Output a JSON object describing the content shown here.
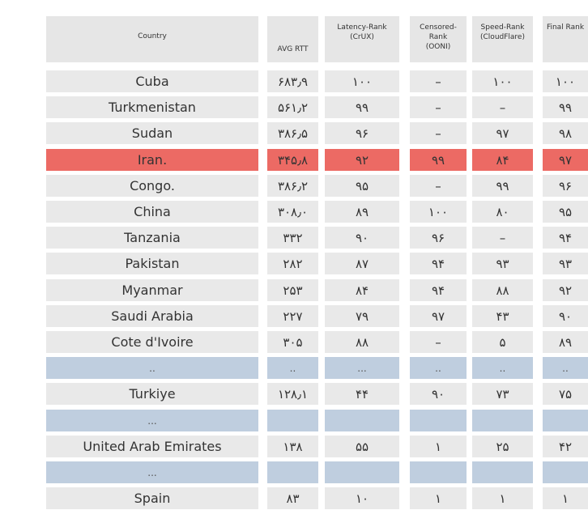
{
  "colors": {
    "header_bg": "#e6e6e6",
    "row_bg": "#e9e9e9",
    "highlight_bg": "#ec6a64",
    "separator_bg": "#bfcedf",
    "text": "#333333"
  },
  "chart_data": {
    "type": "table",
    "columns": [
      "Country",
      "AVG RTT",
      "Latency-Rank\n(CrUX)",
      "Censored-\nRank\n(OONI)",
      "Speed-Rank\n(CloudFlare)",
      "Final Rank"
    ],
    "rows": [
      {
        "kind": "data",
        "cells": [
          "Cuba",
          "۶۸۳٫۹",
          "۱۰۰",
          "–",
          "۱۰۰",
          "۱۰۰"
        ]
      },
      {
        "kind": "data",
        "cells": [
          "Turkmenistan",
          "۵۶۱٫۲",
          "۹۹",
          "–",
          "–",
          "۹۹"
        ]
      },
      {
        "kind": "data",
        "cells": [
          "Sudan",
          "۳۸۶٫۵",
          "۹۶",
          "–",
          "۹۷",
          "۹۸"
        ]
      },
      {
        "kind": "highlight",
        "cells": [
          "Iran.",
          "۳۴۵٫۸",
          "۹۲",
          "۹۹",
          "۸۴",
          "۹۷"
        ]
      },
      {
        "kind": "data",
        "cells": [
          "Congo.",
          "۳۸۶٫۲",
          "۹۵",
          "–",
          "۹۹",
          "۹۶"
        ]
      },
      {
        "kind": "data",
        "cells": [
          "China",
          "۳۰۸٫۰",
          "۸۹",
          "۱۰۰",
          "۸۰",
          "۹۵"
        ]
      },
      {
        "kind": "data",
        "cells": [
          "Tanzania",
          "۳۳۲",
          "۹۰",
          "۹۶",
          "–",
          "۹۴"
        ]
      },
      {
        "kind": "data",
        "cells": [
          "Pakistan",
          "۲۸۲",
          "۸۷",
          "۹۴",
          "۹۳",
          "۹۳"
        ]
      },
      {
        "kind": "data",
        "cells": [
          "Myanmar",
          "۲۵۳",
          "۸۴",
          "۹۴",
          "۸۸",
          "۹۲"
        ]
      },
      {
        "kind": "data",
        "cells": [
          "Saudi Arabia",
          "۲۲۷",
          "۷۹",
          "۹۷",
          "۴۳",
          "۹۰"
        ]
      },
      {
        "kind": "data",
        "cells": [
          "Cote d'Ivoire",
          "۳۰۵",
          "۸۸",
          "–",
          "۵",
          "۸۹"
        ]
      },
      {
        "kind": "separator",
        "cells": [
          "..",
          "..",
          "...",
          "..",
          "..",
          ".."
        ]
      },
      {
        "kind": "data",
        "cells": [
          "Turkiye",
          "۱۲۸٫۱",
          "۴۴",
          "۹۰",
          "۷۳",
          "۷۵"
        ]
      },
      {
        "kind": "separator",
        "cells": [
          "...",
          "",
          "",
          "",
          "",
          ""
        ]
      },
      {
        "kind": "data",
        "cells": [
          "United Arab Emirates",
          "۱۳۸",
          "۵۵",
          "۱",
          "۲۵",
          "۴۲"
        ]
      },
      {
        "kind": "separator",
        "cells": [
          "...",
          "",
          "",
          "",
          "",
          ""
        ]
      },
      {
        "kind": "data",
        "cells": [
          "Spain",
          "۸۳",
          "۱۰",
          "۱",
          "۱",
          "۱"
        ]
      }
    ]
  }
}
